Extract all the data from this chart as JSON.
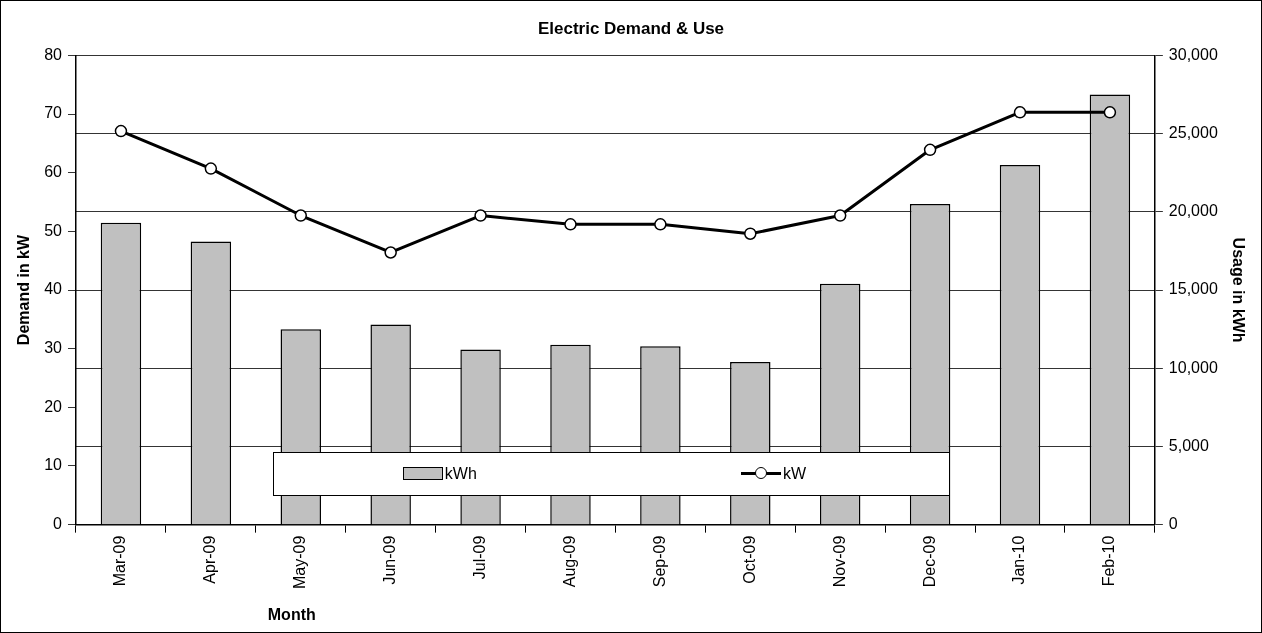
{
  "chart_data": {
    "type": "bar",
    "title": "Electric Demand & Use",
    "xlabel": "Month",
    "ylabel": "Demand in kW",
    "y2label": "Usage in kWh",
    "categories": [
      "Mar-09",
      "Apr-09",
      "May-09",
      "Jun-09",
      "Jul-09",
      "Aug-09",
      "Sep-09",
      "Oct-09",
      "Nov-09",
      "Dec-09",
      "Jan-10",
      "Feb-10"
    ],
    "series": [
      {
        "name": "kWh",
        "axis": "y2",
        "color": "#c0c0c0",
        "values": [
          19300,
          18100,
          12500,
          12800,
          11200,
          11500,
          11400,
          10400,
          15400,
          20500,
          23000,
          27500
        ]
      },
      {
        "name": "kW",
        "type": "line",
        "color": "#000000",
        "marker": "circle",
        "values": [
          67.1,
          60.7,
          52.7,
          46.4,
          52.7,
          51.2,
          51.2,
          49.6,
          52.7,
          63.9,
          70.3,
          70.3
        ]
      }
    ],
    "ylim": [
      0,
      80
    ],
    "yticks": [
      0,
      10,
      20,
      30,
      40,
      50,
      60,
      70,
      80
    ],
    "y2lim": [
      0,
      30000
    ],
    "y2ticks": [
      {
        "value": 0,
        "label": "0"
      },
      {
        "value": 5000,
        "label": "5,000"
      },
      {
        "value": 10000,
        "label": "10,000"
      },
      {
        "value": 15000,
        "label": "15,000"
      },
      {
        "value": 20000,
        "label": "20,000"
      },
      {
        "value": 25000,
        "label": "25,000"
      },
      {
        "value": 30000,
        "label": "30,000"
      }
    ],
    "grid": "y2",
    "legend": "bottom"
  }
}
